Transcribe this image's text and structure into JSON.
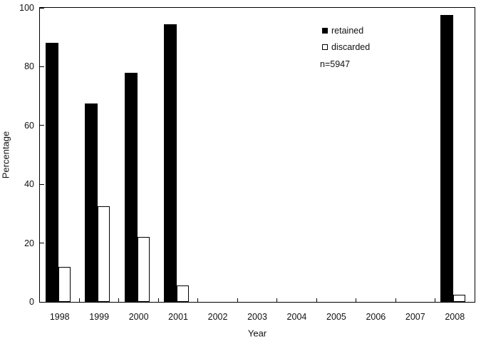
{
  "chart_data": {
    "type": "bar",
    "title": "",
    "xlabel": "Year",
    "ylabel": "Percentage",
    "ylim": [
      0,
      100
    ],
    "yticks": [
      0,
      20,
      40,
      60,
      80,
      100
    ],
    "grid": false,
    "axis_color": "#000000",
    "categories": [
      "1998",
      "1999",
      "2000",
      "2001",
      "2002",
      "2003",
      "2004",
      "2005",
      "2006",
      "2007",
      "2008"
    ],
    "series": [
      {
        "name": "retained",
        "fill": "#000000",
        "values": [
          88,
          67.5,
          78,
          94.5,
          null,
          null,
          null,
          null,
          null,
          null,
          97.5
        ]
      },
      {
        "name": "discarded",
        "fill": "#ffffff",
        "values": [
          12,
          32.5,
          22,
          5.5,
          null,
          null,
          null,
          null,
          null,
          null,
          2.5
        ]
      }
    ],
    "legend": {
      "position": "top-right",
      "items": [
        {
          "label": "retained",
          "swatch": "filled-square"
        },
        {
          "label": "discarded",
          "swatch": "open-square"
        }
      ],
      "note": "n=5947"
    }
  }
}
